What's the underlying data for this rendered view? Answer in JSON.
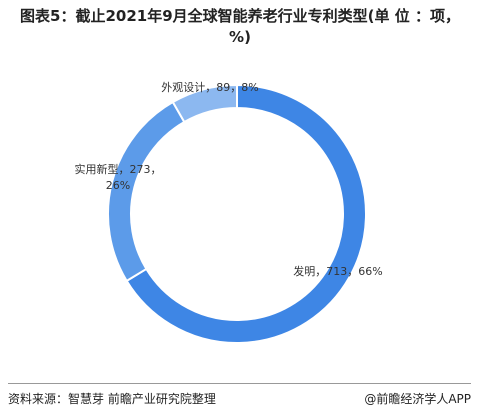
{
  "chart_data": {
    "type": "donut",
    "title": "图表5：截止2021年9月全球智能养老行业专利类型(单 位 ：项，%)",
    "labels": [
      [
        "发明，713，66%"
      ],
      [
        "实用新型，273，",
        "26%"
      ],
      [
        "外观设计，89，8%"
      ]
    ],
    "values": [
      713,
      273,
      89
    ],
    "colors": [
      "#3e86e5",
      "#5c9be9",
      "#8cb8f0"
    ]
  },
  "footer": {
    "source": "资料来源：智慧芽 前瞻产业研究院整理",
    "brand": "@前瞻经济学人APP"
  }
}
